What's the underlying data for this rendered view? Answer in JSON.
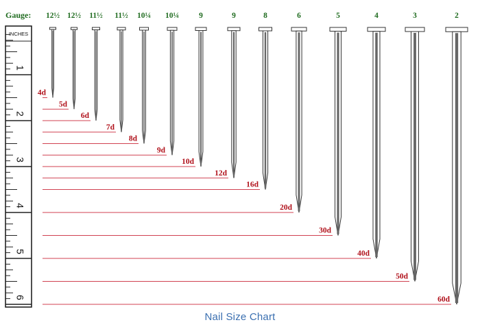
{
  "header": {
    "gauge_label": "Gauge:"
  },
  "ruler": {
    "unit_label": "INCHES",
    "inch_numbers": [
      "1",
      "2",
      "3",
      "4",
      "5",
      "6"
    ],
    "max_inches": 6.3
  },
  "nails": [
    {
      "gauge": "12½",
      "penny": "4d",
      "length_in": 1.5
    },
    {
      "gauge": "12½",
      "penny": "5d",
      "length_in": 1.75
    },
    {
      "gauge": "11½",
      "penny": "6d",
      "length_in": 2.0
    },
    {
      "gauge": "11½",
      "penny": "7d",
      "length_in": 2.25
    },
    {
      "gauge": "10¼",
      "penny": "8d",
      "length_in": 2.5
    },
    {
      "gauge": "10¼",
      "penny": "9d",
      "length_in": 2.75
    },
    {
      "gauge": "9",
      "penny": "10d",
      "length_in": 3.0
    },
    {
      "gauge": "9",
      "penny": "12d",
      "length_in": 3.25
    },
    {
      "gauge": "8",
      "penny": "16d",
      "length_in": 3.5
    },
    {
      "gauge": "6",
      "penny": "20d",
      "length_in": 4.0
    },
    {
      "gauge": "5",
      "penny": "30d",
      "length_in": 4.5
    },
    {
      "gauge": "4",
      "penny": "40d",
      "length_in": 5.0
    },
    {
      "gauge": "3",
      "penny": "50d",
      "length_in": 5.5
    },
    {
      "gauge": "2",
      "penny": "60d",
      "length_in": 6.0
    }
  ],
  "colors": {
    "gauge_text": "#1f6b1f",
    "penny_text": "#b0101a",
    "guide_line": "#d04050",
    "nail": "#555555",
    "caption": "#3a6fb0"
  },
  "caption": "Nail Size Chart"
}
